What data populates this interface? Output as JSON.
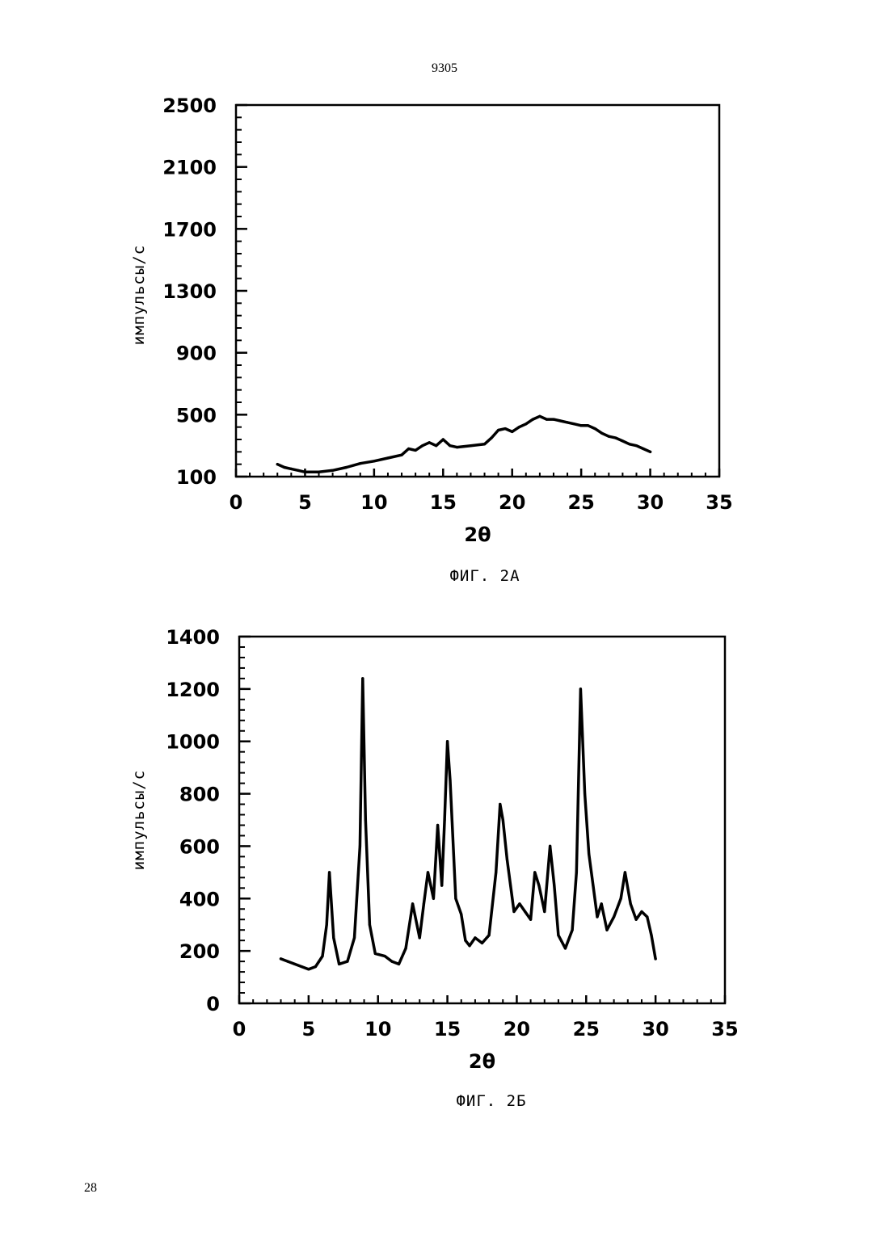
{
  "page": {
    "header": "9305",
    "page_number": "28"
  },
  "chart_data": [
    {
      "type": "line",
      "caption": "ФИГ. 2А",
      "xlabel": "2θ",
      "ylabel": "импульсы/с",
      "xlim": [
        0,
        35
      ],
      "ylim": [
        100,
        2500
      ],
      "x_ticks": [
        "0",
        "5",
        "10",
        "15",
        "20",
        "25",
        "30",
        "35"
      ],
      "y_ticks": [
        "100",
        "500",
        "900",
        "1300",
        "1700",
        "2100",
        "2500"
      ],
      "grid": false,
      "legend": "none",
      "series": [
        {
          "x": [
            3.0,
            3.5,
            4.0,
            4.5,
            5.0,
            6.0,
            7.0,
            8.0,
            9.0,
            10.0,
            11.0,
            12.0,
            12.5,
            13.0,
            13.5,
            14.0,
            14.5,
            15.0,
            15.5,
            16.0,
            17.0,
            18.0,
            18.5,
            19.0,
            19.5,
            20.0,
            20.5,
            21.0,
            21.5,
            22.0,
            22.5,
            23.0,
            23.5,
            24.0,
            24.5,
            25.0,
            25.5,
            26.0,
            26.5,
            27.0,
            27.5,
            28.0,
            28.5,
            29.0,
            29.5,
            30.0
          ],
          "y": [
            180,
            160,
            150,
            140,
            130,
            130,
            140,
            160,
            185,
            200,
            220,
            240,
            280,
            270,
            300,
            320,
            300,
            340,
            300,
            290,
            300,
            310,
            350,
            400,
            410,
            390,
            420,
            440,
            470,
            490,
            470,
            470,
            460,
            450,
            440,
            430,
            430,
            410,
            380,
            360,
            350,
            330,
            310,
            300,
            280,
            260
          ]
        }
      ]
    },
    {
      "type": "line",
      "caption": "ФИГ. 2Б",
      "xlabel": "2θ",
      "ylabel": "импульсы/с",
      "xlim": [
        0,
        35
      ],
      "ylim": [
        0,
        1400
      ],
      "x_ticks": [
        "0",
        "5",
        "10",
        "15",
        "20",
        "25",
        "30",
        "35"
      ],
      "y_ticks": [
        "0",
        "200",
        "400",
        "600",
        "800",
        "1000",
        "1200",
        "1400"
      ],
      "grid": false,
      "legend": "none",
      "series": [
        {
          "x": [
            3.0,
            3.5,
            4.0,
            4.5,
            5.0,
            5.5,
            6.0,
            6.3,
            6.5,
            6.8,
            7.2,
            7.8,
            8.3,
            8.7,
            8.9,
            9.1,
            9.4,
            9.8,
            10.5,
            11.0,
            11.5,
            12.0,
            12.5,
            13.0,
            13.3,
            13.6,
            14.0,
            14.3,
            14.6,
            14.8,
            15.0,
            15.2,
            15.6,
            16.0,
            16.3,
            16.6,
            17.0,
            17.5,
            18.0,
            18.5,
            18.8,
            19.0,
            19.3,
            19.8,
            20.2,
            20.6,
            21.0,
            21.3,
            21.6,
            22.0,
            22.4,
            22.7,
            23.0,
            23.5,
            24.0,
            24.3,
            24.6,
            24.9,
            25.2,
            25.5,
            25.8,
            26.1,
            26.5,
            27.0,
            27.5,
            27.8,
            28.2,
            28.6,
            29.0,
            29.4,
            29.7,
            30.0
          ],
          "y": [
            170,
            160,
            150,
            140,
            130,
            140,
            180,
            300,
            500,
            250,
            150,
            160,
            250,
            600,
            1240,
            700,
            300,
            190,
            180,
            160,
            150,
            210,
            380,
            250,
            380,
            500,
            400,
            680,
            450,
            700,
            1000,
            850,
            400,
            340,
            240,
            220,
            250,
            230,
            260,
            500,
            760,
            700,
            550,
            350,
            380,
            350,
            320,
            500,
            450,
            350,
            600,
            450,
            260,
            210,
            280,
            500,
            1200,
            800,
            570,
            450,
            330,
            380,
            280,
            330,
            400,
            500,
            380,
            320,
            350,
            330,
            260,
            170
          ]
        }
      ]
    }
  ]
}
